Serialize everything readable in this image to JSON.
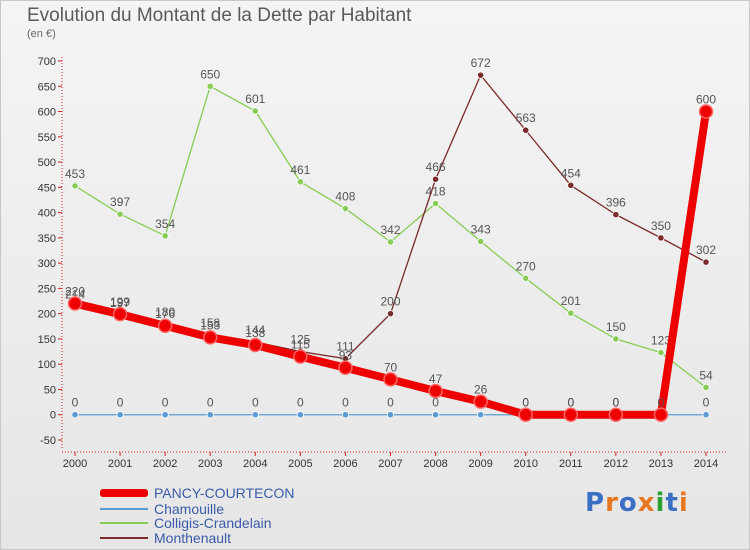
{
  "chart_data": {
    "type": "line",
    "title": "Evolution du Montant de la Dette par Habitant",
    "subtitle": "(en €)",
    "x": [
      2000,
      2001,
      2002,
      2003,
      2004,
      2005,
      2006,
      2007,
      2008,
      2009,
      2010,
      2011,
      2012,
      2013,
      2014
    ],
    "ylim": [
      -50,
      700
    ],
    "yticks": [
      -50,
      0,
      50,
      100,
      150,
      200,
      250,
      300,
      350,
      400,
      450,
      500,
      550,
      600,
      650,
      700
    ],
    "grid": false,
    "legend_position": "bottom-left",
    "series": [
      {
        "name": "Colligis-Crandelain",
        "color": "#88cc55",
        "values": [
          453,
          397,
          354,
          650,
          601,
          461,
          408,
          342,
          418,
          343,
          270,
          201,
          150,
          123,
          54
        ],
        "labels": [
          "453",
          "397",
          "354",
          "650",
          "601",
          "461",
          "408",
          "342",
          "418",
          "343",
          "270",
          "201",
          "150",
          "123",
          "54"
        ]
      },
      {
        "name": "Monthenault",
        "color": "#7a2a2a",
        "values": [
          214,
          197,
          180,
          158,
          144,
          125,
          111,
          200,
          466,
          672,
          563,
          454,
          396,
          350,
          302
        ],
        "labels": [
          "214",
          "197",
          "180",
          "158",
          "144",
          "125",
          "111",
          "200",
          "466",
          "672",
          "563",
          "454",
          "396",
          "350",
          "302"
        ]
      },
      {
        "name": "Chamouille",
        "color": "#5b9bd5",
        "values": [
          0,
          0,
          0,
          0,
          0,
          0,
          0,
          0,
          0,
          0,
          0,
          0,
          0,
          0,
          0
        ],
        "labels": [
          "0",
          "0",
          "0",
          "0",
          "0",
          "0",
          "0",
          "0",
          "0",
          "0",
          "0",
          "0",
          "0",
          "0",
          "0"
        ]
      },
      {
        "name": "PANCY-COURTECON",
        "color": "#ee0000",
        "values": [
          220,
          199,
          176,
          153,
          138,
          115,
          93,
          70,
          47,
          26,
          0,
          0,
          0,
          0,
          600
        ],
        "labels": [
          "220",
          "199",
          "176",
          "153",
          "138",
          "115",
          "93",
          "70",
          "47",
          "26",
          "0",
          "0",
          "0",
          "0",
          "600"
        ]
      }
    ]
  },
  "legend": [
    {
      "name": "PANCY-COURTECON",
      "color": "#ee0000",
      "thickness": 8
    },
    {
      "name": "Chamouille",
      "color": "#5b9bd5",
      "thickness": 2
    },
    {
      "name": "Colligis-Crandelain",
      "color": "#88cc55",
      "thickness": 2
    },
    {
      "name": "Monthenault",
      "color": "#7a2a2a",
      "thickness": 2
    }
  ],
  "logo": {
    "text": "Proxiti",
    "colors": [
      "#3a6fc4",
      "#e87722",
      "#3a6fc4",
      "#e87722",
      "#2ca02c",
      "#3a6fc4",
      "#e87722"
    ]
  }
}
